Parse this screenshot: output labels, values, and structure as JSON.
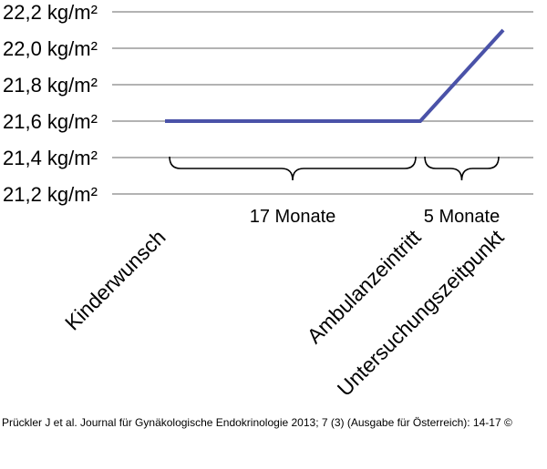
{
  "chart_data": {
    "type": "line",
    "title": "",
    "xlabel": "",
    "ylabel": "",
    "categories": [
      "Kinderwunsch",
      "Ambulanzeintritt",
      "Untersuchungszeitpunkt"
    ],
    "series": [
      {
        "values": [
          21.6,
          21.6,
          22.1
        ]
      }
    ],
    "ylim": [
      21.2,
      22.2
    ],
    "y_ticks": [
      22.2,
      22.0,
      21.8,
      21.6,
      21.4,
      21.2
    ],
    "y_tick_labels": [
      "22,2 kg/m²",
      "22,0 kg/m²",
      "21,8 kg/m²",
      "21,6 kg/m²",
      "21,4 kg/m²",
      "21,2 kg/m²"
    ],
    "grid": "horizontal",
    "line_color": "#4a52a8",
    "grid_color": "#9a9a9a",
    "intervals": [
      {
        "from": 0,
        "to": 1,
        "label": "17 Monate"
      },
      {
        "from": 1,
        "to": 2,
        "label": "5 Monate"
      }
    ]
  },
  "caption": "Prückler J et al. Journal für Gynäkologische Endokrinologie 2013; 7 (3) (Ausgabe für Österreich): 14-17 ©"
}
